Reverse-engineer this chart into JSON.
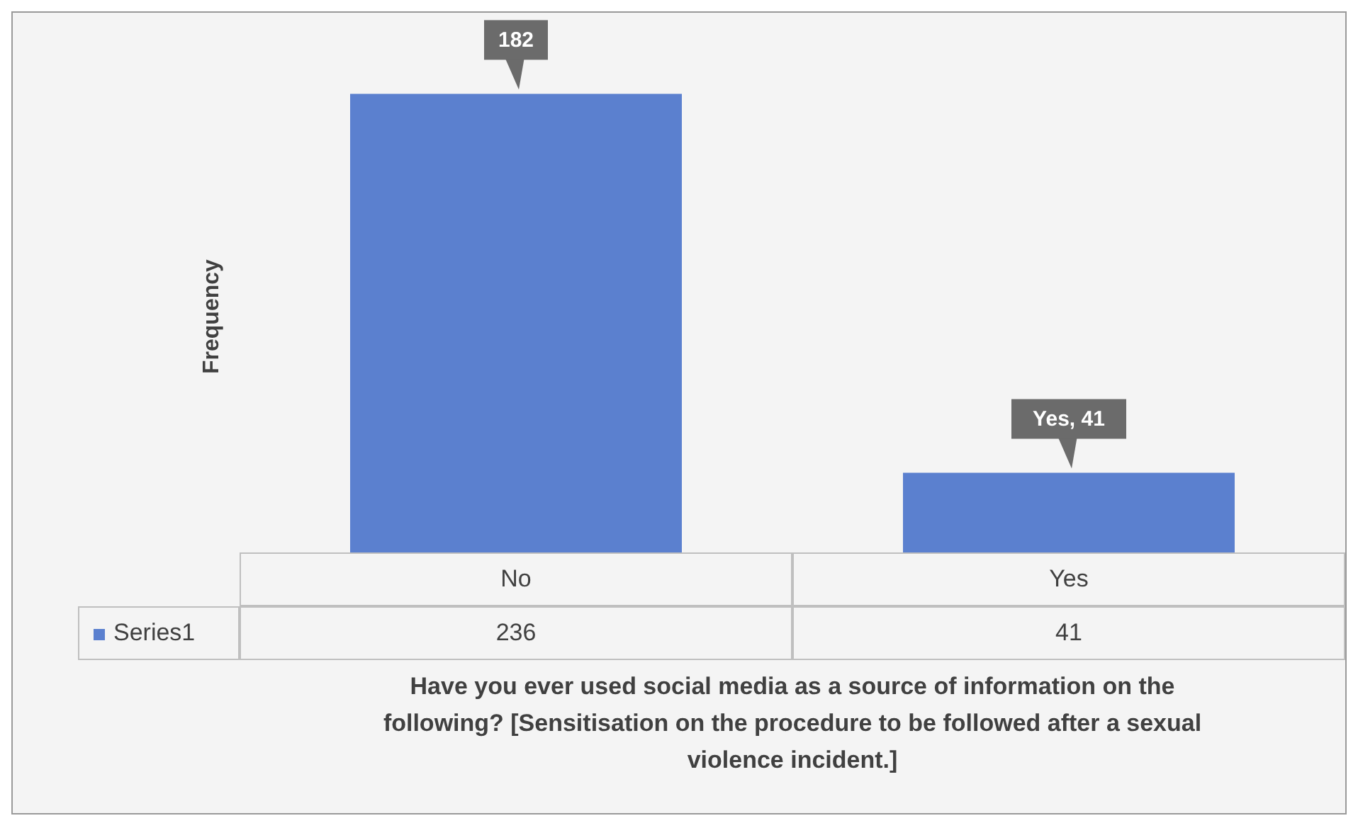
{
  "chart_data": {
    "type": "bar",
    "ylabel": "Frequency",
    "xlabel": "Have you ever used social media as a source of information on the following? [Sensitisation on the procedure to be followed after a sexual violence incident.]",
    "categories": [
      "No",
      "Yes"
    ],
    "series": [
      {
        "name": "Series1",
        "color": "#5b80cf",
        "values": [
          236,
          41
        ]
      }
    ],
    "data_labels": true,
    "annotations": [
      {
        "text": "182",
        "x": "No",
        "y": 236
      },
      {
        "text": "Yes, 41",
        "x": "Yes",
        "y": 41
      }
    ]
  }
}
